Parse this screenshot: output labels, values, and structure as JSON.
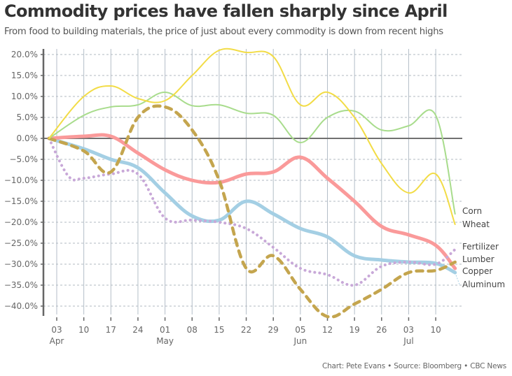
{
  "title": "Commodity prices have fallen sharply since April",
  "subtitle": "From food to building materials, the price of just about every commodity is down from recent highs",
  "credit": "Chart: Pete Evans • Source: Bloomberg • CBC News",
  "chart_data": {
    "type": "line",
    "title": "Commodity prices have fallen sharply since April",
    "xlabel": "",
    "ylabel": "",
    "x_unit": "days since Apr 03",
    "ylim": [
      -40,
      20
    ],
    "y_ticks": [
      "20.0%",
      "15.0%",
      "10.0%",
      "5.0%",
      "0.0%",
      "−5.0%",
      "−10.0%",
      "−15.0%",
      "−20.0%",
      "−25.0%",
      "−30.0%",
      "−35.0%",
      "−40.0%"
    ],
    "x_ticks": [
      {
        "day": 0,
        "label": "03",
        "month": "Apr"
      },
      {
        "day": 7,
        "label": "10",
        "month": ""
      },
      {
        "day": 14,
        "label": "17",
        "month": ""
      },
      {
        "day": 21,
        "label": "24",
        "month": ""
      },
      {
        "day": 28,
        "label": "01",
        "month": "May"
      },
      {
        "day": 35,
        "label": "08",
        "month": ""
      },
      {
        "day": 42,
        "label": "15",
        "month": ""
      },
      {
        "day": 49,
        "label": "22",
        "month": ""
      },
      {
        "day": 56,
        "label": "29",
        "month": ""
      },
      {
        "day": 63,
        "label": "05",
        "month": "Jun"
      },
      {
        "day": 70,
        "label": "12",
        "month": ""
      },
      {
        "day": 77,
        "label": "19",
        "month": ""
      },
      {
        "day": 84,
        "label": "26",
        "month": ""
      },
      {
        "day": 91,
        "label": "03",
        "month": "Jul"
      },
      {
        "day": 98,
        "label": "10",
        "month": ""
      }
    ],
    "grid": true,
    "legend": "direct labels at right end of lines",
    "series": [
      {
        "name": "Corn",
        "color": "#a8dc8c",
        "style": "solid-thin",
        "x": [
          -2,
          7,
          14,
          21,
          28,
          35,
          42,
          49,
          56,
          63,
          70,
          77,
          84,
          91,
          98,
          103
        ],
        "y": [
          0,
          5.5,
          7.5,
          8,
          11,
          7.8,
          8,
          6,
          5.5,
          -1,
          5,
          6.5,
          2,
          3,
          5.5,
          -18
        ]
      },
      {
        "name": "Wheat",
        "color": "#f2dc46",
        "style": "solid-thin",
        "x": [
          -2,
          7,
          14,
          21,
          28,
          35,
          42,
          49,
          56,
          63,
          70,
          77,
          84,
          91,
          98,
          103
        ],
        "y": [
          0,
          10,
          12.5,
          9.5,
          9,
          15,
          21,
          20.5,
          19.5,
          8,
          11,
          5,
          -6,
          -13,
          -8.5,
          -20.5
        ]
      },
      {
        "name": "Fertilizer",
        "color": "#c8a8d8",
        "style": "dotted",
        "x": [
          -2,
          3,
          7,
          14,
          21,
          28,
          35,
          42,
          49,
          56,
          63,
          70,
          77,
          84,
          91,
          98,
          103
        ],
        "y": [
          0,
          -9,
          -9.5,
          -8.5,
          -8.5,
          -19,
          -19.5,
          -20,
          -21.5,
          -26,
          -31,
          -32.5,
          -35,
          -30.5,
          -29.5,
          -30,
          -26.5
        ]
      },
      {
        "name": "Lumber",
        "color": "#c4a54e",
        "style": "dashed",
        "x": [
          -2,
          7,
          14,
          21,
          28,
          35,
          42,
          49,
          56,
          63,
          70,
          77,
          84,
          91,
          98,
          103
        ],
        "y": [
          0,
          -3,
          -8,
          5,
          7.5,
          2,
          -10,
          -31,
          -28,
          -36,
          -42.5,
          -39.5,
          -36,
          -32,
          -31.5,
          -29.5
        ]
      },
      {
        "name": "Copper",
        "color": "#fa9a9a",
        "style": "solid-thick",
        "x": [
          -2,
          7,
          14,
          21,
          28,
          35,
          42,
          49,
          56,
          63,
          70,
          77,
          84,
          91,
          98,
          103
        ],
        "y": [
          0,
          0.5,
          0.5,
          -3.5,
          -7.5,
          -10,
          -10.5,
          -8.5,
          -8,
          -4.5,
          -9.5,
          -15,
          -21,
          -23,
          -25.5,
          -31
        ]
      },
      {
        "name": "Aluminum",
        "color": "#a4cfe4",
        "style": "solid-thick",
        "x": [
          -2,
          7,
          14,
          21,
          28,
          35,
          42,
          49,
          56,
          63,
          70,
          77,
          84,
          91,
          98,
          103
        ],
        "y": [
          0,
          -2.5,
          -5,
          -7,
          -13,
          -18.5,
          -19.5,
          -15,
          -18,
          -21.5,
          -23.5,
          -28,
          -29,
          -29.5,
          -29.8,
          -32
        ]
      }
    ],
    "direct_labels": [
      "Corn",
      "Wheat",
      "Fertilizer",
      "Lumber",
      "Copper",
      "Aluminum"
    ]
  }
}
